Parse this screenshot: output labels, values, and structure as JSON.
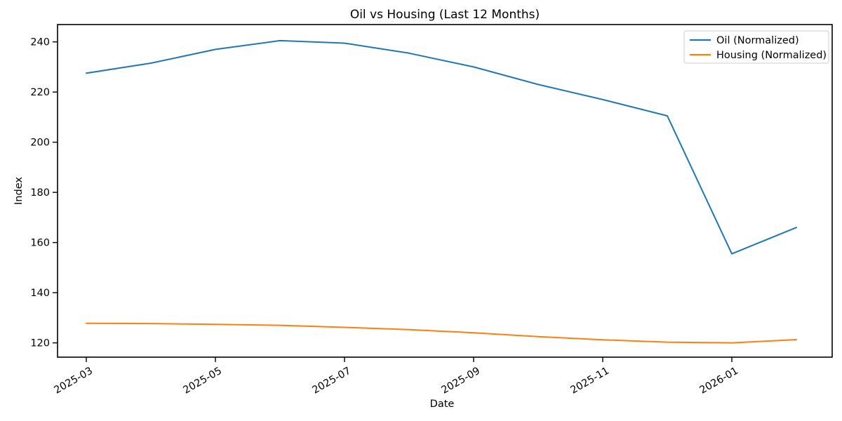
{
  "figure": {
    "title": "Oil vs Housing (Last 12 Months)",
    "xlabel": "Date",
    "ylabel": "Index"
  },
  "chart_data": {
    "type": "line",
    "title": "Oil vs Housing (Last 12 Months)",
    "xlabel": "Date",
    "ylabel": "Index",
    "x": [
      "2025-03",
      "2025-04",
      "2025-05",
      "2025-06",
      "2025-07",
      "2025-08",
      "2025-09",
      "2025-10",
      "2025-11",
      "2025-12",
      "2026-01",
      "2026-02"
    ],
    "x_tick_labels": [
      "2025-03",
      "2025-05",
      "2025-07",
      "2025-09",
      "2025-11",
      "2026-01"
    ],
    "x_tick_indices": [
      0,
      2,
      4,
      6,
      8,
      10
    ],
    "y_ticks": [
      120,
      140,
      160,
      180,
      200,
      220,
      240
    ],
    "ylim": [
      114.3,
      246.9
    ],
    "grid": false,
    "legend": {
      "position": "upper right"
    },
    "series": [
      {
        "name": "Oil (Normalized)",
        "color": "#1f77b4",
        "values": [
          227.5,
          231.5,
          237,
          240.5,
          239.5,
          235.5,
          230,
          223,
          217,
          210.5,
          155.5,
          166
        ]
      },
      {
        "name": "Housing (Normalized)",
        "color": "#ff7f0e",
        "values": [
          127.8,
          127.7,
          127.4,
          127,
          126.2,
          125.3,
          124,
          122.5,
          121.2,
          120.3,
          120,
          121.3
        ]
      }
    ],
    "axis_color": "#000000",
    "background": "#ffffff"
  }
}
